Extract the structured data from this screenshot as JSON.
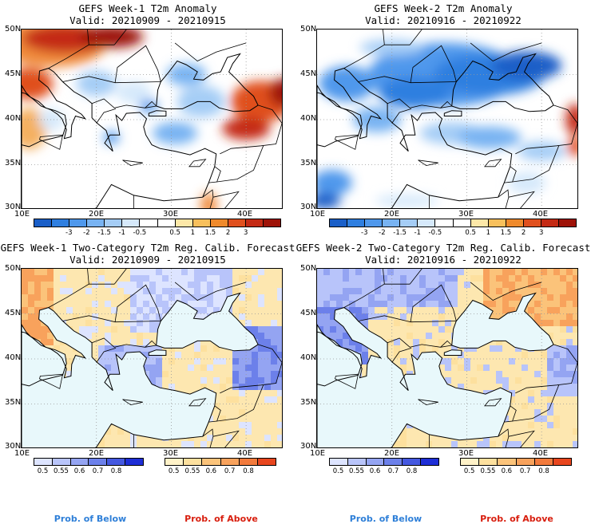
{
  "panels": [
    {
      "title": "GEFS Week-1 T2m Anomaly",
      "valid": "Valid: 20210909 - 20210915",
      "type": "anomaly",
      "ylabels": [
        "50N",
        "45N",
        "40N",
        "35N",
        "30N"
      ],
      "xlabels": [
        "10E",
        "20E",
        "30E",
        "40E"
      ]
    },
    {
      "title": "GEFS Week-2 T2m Anomaly",
      "valid": "Valid: 20210916 - 20210922",
      "type": "anomaly",
      "ylabels": [
        "50N",
        "45N",
        "40N",
        "35N",
        "30N"
      ],
      "xlabels": [
        "10E",
        "20E",
        "30E",
        "40E"
      ]
    },
    {
      "title": "GEFS Week-1 Two-Category T2m Reg. Calib. Forecast",
      "valid": "Valid: 20210909 - 20210915",
      "type": "prob",
      "ylabels": [
        "50N",
        "45N",
        "40N",
        "35N",
        "30N"
      ],
      "xlabels": [
        "10E",
        "20E",
        "30E",
        "40E"
      ]
    },
    {
      "title": "GEFS Week-2 Two-Category T2m Reg. Calib. Forecast",
      "valid": "Valid: 20210916 - 20210922",
      "type": "prob",
      "ylabels": [
        "50N",
        "45N",
        "40N",
        "35N",
        "30N"
      ],
      "xlabels": [
        "10E",
        "20E",
        "30E",
        "40E"
      ]
    }
  ],
  "anomaly_colorbar": {
    "colors": [
      "#1a5fc8",
      "#2f7fe0",
      "#4f98ec",
      "#78b3f2",
      "#a5cdf6",
      "#d6e9fb",
      "#ffffff",
      "#ffffff",
      "#fde8a8",
      "#f8c05c",
      "#ef8a2c",
      "#e0501e",
      "#c42a14",
      "#9e1208"
    ],
    "labels": [
      "-3",
      "-2",
      "-1.5",
      "-1",
      "-0.5",
      "0.5",
      "1",
      "1.5",
      "2",
      "3"
    ]
  },
  "prob_below_colorbar": {
    "colors": [
      "#dde4ff",
      "#b8c4fa",
      "#94a4f2",
      "#6c80ea",
      "#4458e0",
      "#1e2ed6"
    ],
    "labels": [
      "0.5",
      "0.55",
      "0.6",
      "0.7",
      "0.8"
    ]
  },
  "prob_above_colorbar": {
    "colors": [
      "#fff2c8",
      "#fde09e",
      "#fbc37a",
      "#f8a25c",
      "#f27a3c",
      "#e8461e"
    ],
    "labels": [
      "0.5",
      "0.55",
      "0.6",
      "0.7",
      "0.8"
    ]
  },
  "legend": {
    "below": "Prob. of Below",
    "above": "Prob. of Above",
    "below_color": "#2e7fd8",
    "above_color": "#d81e0e"
  },
  "colors": {
    "sea_prob": "#e8f8fb",
    "anom_warm": "#d23a1c",
    "anom_cold": "#4f98ec"
  }
}
